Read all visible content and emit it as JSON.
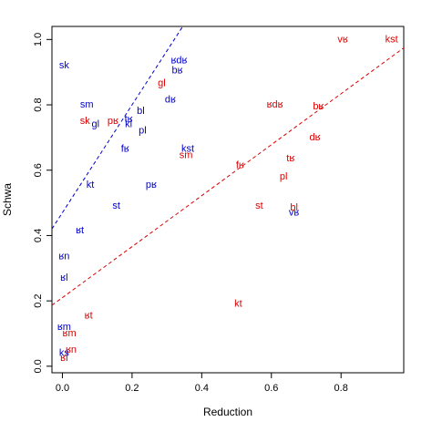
{
  "chart_data": {
    "type": "scatter",
    "xlabel": "Reduction",
    "ylabel": "Schwa",
    "xlim": [
      -0.03,
      0.98
    ],
    "ylim": [
      -0.02,
      1.04
    ],
    "x_ticks": [
      {
        "value": 0.0,
        "label": "0.0"
      },
      {
        "value": 0.2,
        "label": "0.2"
      },
      {
        "value": 0.4,
        "label": "0.4"
      },
      {
        "value": 0.6,
        "label": "0.6"
      },
      {
        "value": 0.8,
        "label": "0.8"
      }
    ],
    "y_ticks": [
      {
        "value": 0.0,
        "label": "0.0"
      },
      {
        "value": 0.2,
        "label": "0.2"
      },
      {
        "value": 0.4,
        "label": "0.4"
      },
      {
        "value": 0.6,
        "label": "0.6"
      },
      {
        "value": 0.8,
        "label": "0.8"
      },
      {
        "value": 1.0,
        "label": "1.0"
      }
    ],
    "grid": false,
    "legend": "none",
    "colors": {
      "blue": "#0000cc",
      "red": "#dd0000"
    },
    "series": [
      {
        "color": "#0000cc",
        "points": [
          {
            "label": "sk",
            "x": 0.005,
            "y": 0.92
          },
          {
            "label": "sm",
            "x": 0.07,
            "y": 0.8
          },
          {
            "label": "gl",
            "x": 0.095,
            "y": 0.74
          },
          {
            "label": "tʁ",
            "x": 0.19,
            "y": 0.755
          },
          {
            "label": "kl",
            "x": 0.19,
            "y": 0.74
          },
          {
            "label": "bl",
            "x": 0.225,
            "y": 0.78
          },
          {
            "label": "pl",
            "x": 0.23,
            "y": 0.72
          },
          {
            "label": "ʁdʁ",
            "x": 0.335,
            "y": 0.935
          },
          {
            "label": "bʁ",
            "x": 0.33,
            "y": 0.905
          },
          {
            "label": "dʁ",
            "x": 0.31,
            "y": 0.815
          },
          {
            "label": "fʁ",
            "x": 0.18,
            "y": 0.665
          },
          {
            "label": "kst",
            "x": 0.36,
            "y": 0.665
          },
          {
            "label": "kt",
            "x": 0.08,
            "y": 0.555
          },
          {
            "label": "pʁ",
            "x": 0.255,
            "y": 0.555
          },
          {
            "label": "st",
            "x": 0.155,
            "y": 0.49
          },
          {
            "label": "ʁt",
            "x": 0.05,
            "y": 0.415
          },
          {
            "label": "ʁn",
            "x": 0.005,
            "y": 0.335
          },
          {
            "label": "ʁl",
            "x": 0.005,
            "y": 0.27
          },
          {
            "label": "ʁm",
            "x": 0.005,
            "y": 0.12
          },
          {
            "label": "ks",
            "x": 0.005,
            "y": 0.04
          },
          {
            "label": "vʁ",
            "x": 0.665,
            "y": 0.47
          }
        ]
      },
      {
        "color": "#dd0000",
        "points": [
          {
            "label": "gl",
            "x": 0.285,
            "y": 0.865
          },
          {
            "label": "sk",
            "x": 0.065,
            "y": 0.75
          },
          {
            "label": "pʁ",
            "x": 0.145,
            "y": 0.75
          },
          {
            "label": "sm",
            "x": 0.355,
            "y": 0.645
          },
          {
            "label": "ʁdʁ",
            "x": 0.61,
            "y": 0.8
          },
          {
            "label": "bʁ",
            "x": 0.735,
            "y": 0.795
          },
          {
            "label": "dʁ",
            "x": 0.725,
            "y": 0.7
          },
          {
            "label": "vʁ",
            "x": 0.805,
            "y": 1.0
          },
          {
            "label": "kst",
            "x": 0.945,
            "y": 1.0
          },
          {
            "label": "fʁ",
            "x": 0.51,
            "y": 0.615
          },
          {
            "label": "tʁ",
            "x": 0.655,
            "y": 0.635
          },
          {
            "label": "pl",
            "x": 0.635,
            "y": 0.58
          },
          {
            "label": "st",
            "x": 0.565,
            "y": 0.49
          },
          {
            "label": "bl",
            "x": 0.665,
            "y": 0.485
          },
          {
            "label": "kt",
            "x": 0.505,
            "y": 0.19
          },
          {
            "label": "ʁt",
            "x": 0.075,
            "y": 0.155
          },
          {
            "label": "ʁm",
            "x": 0.02,
            "y": 0.1
          },
          {
            "label": "ʁn",
            "x": 0.025,
            "y": 0.05
          },
          {
            "label": "ʁl",
            "x": 0.005,
            "y": 0.025
          }
        ]
      }
    ],
    "trend_lines": [
      {
        "color": "#0000cc",
        "intercept": 0.47,
        "slope": 1.65
      },
      {
        "color": "#dd0000",
        "intercept": 0.21,
        "slope": 0.78
      }
    ]
  }
}
